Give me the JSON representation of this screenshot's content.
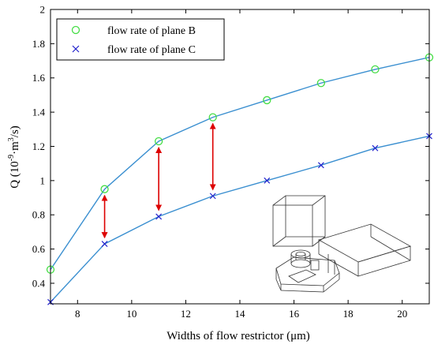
{
  "chart_data": {
    "type": "line",
    "xlabel": "Widths of flow restrictor (μm)",
    "ylabel_main": "Q (10",
    "ylabel_exp1": "-9",
    "ylabel_mid": "·m",
    "ylabel_exp2": "3",
    "ylabel_end": "/s)",
    "xlim": [
      7,
      21
    ],
    "ylim": [
      0.28,
      2.0
    ],
    "xticks": [
      8,
      10,
      12,
      14,
      16,
      18,
      20
    ],
    "yticks": [
      0.4,
      0.6,
      0.8,
      1,
      1.2,
      1.4,
      1.6,
      1.8,
      2
    ],
    "grid": false,
    "legend_position": "top-left",
    "line_color": "#3a8fd0",
    "series": [
      {
        "name": "flow rate of plane B",
        "marker": "circle",
        "marker_color": "#44dd44",
        "x": [
          7,
          9,
          11,
          13,
          15,
          17,
          19,
          21
        ],
        "y": [
          0.48,
          0.95,
          1.23,
          1.37,
          1.47,
          1.57,
          1.65,
          1.72
        ]
      },
      {
        "name": "flow rate of plane C",
        "marker": "cross",
        "marker_color": "#2222cc",
        "x": [
          7,
          9,
          11,
          13,
          15,
          17,
          19,
          21
        ],
        "y": [
          0.29,
          0.63,
          0.79,
          0.91,
          1.0,
          1.09,
          1.19,
          1.26
        ]
      }
    ],
    "annotations": {
      "type": "double-arrow",
      "color": "#dd0000",
      "x": [
        9,
        11,
        13
      ]
    },
    "inset": "3d-model-wireframe"
  }
}
